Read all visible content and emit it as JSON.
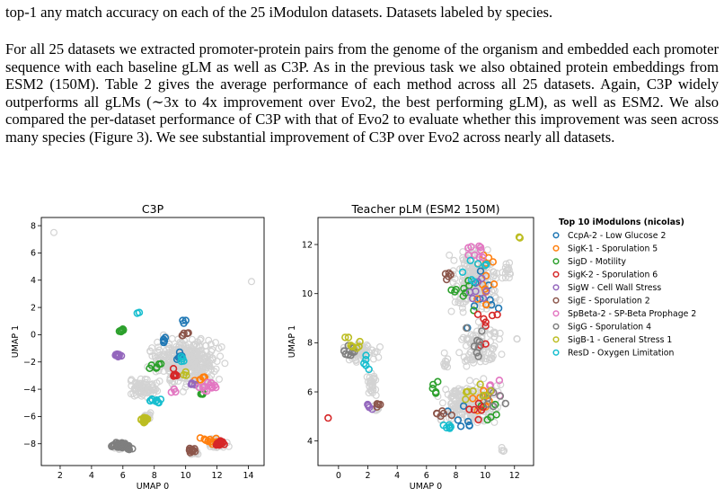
{
  "text": {
    "caption_tail": "top-1 any match accuracy on each of the 25 iModulon datasets. Datasets labeled by species.",
    "paragraph": "For all 25 datasets we extracted promoter-protein pairs from the genome of the organism and embedded each promoter sequence with each baseline gLM as well as C3P. As in the previous task we also obtained protein embeddings from ESM2 (150M). Table 2 gives the average performance of each method across all 25 datasets. Again, C3P widely outperforms all gLMs (∼3x to 4x improvement over Evo2, the best performing gLM), as well as ESM2. We also compared the per-dataset performance of C3P with that of Evo2 to evaluate whether this improvement was seen across many species (Figure 3). We see substantial improvement of C3P over Evo2 across nearly all datasets."
  },
  "legend": {
    "title": "Top 10 iModulons (nicolas)",
    "items": [
      {
        "label": "CcpA-2 - Low Glucose 2",
        "color": "#1f77b4"
      },
      {
        "label": "SigK-1 - Sporulation 5",
        "color": "#ff7f0e"
      },
      {
        "label": "SigD - Motility",
        "color": "#2ca02c"
      },
      {
        "label": "SigK-2 - Sporulation 6",
        "color": "#d62728"
      },
      {
        "label": "SigW - Cell Wall Stress",
        "color": "#9467bd"
      },
      {
        "label": "SigE - Sporulation 2",
        "color": "#8c564b"
      },
      {
        "label": "SpBeta-2 - SP-Beta Prophage 2",
        "color": "#e377c2"
      },
      {
        "label": "SigG - Sporulation 4",
        "color": "#7f7f7f"
      },
      {
        "label": "SigB-1 - General Stress 1",
        "color": "#bcbd22"
      },
      {
        "label": "ResD - Oxygen Limitation",
        "color": "#17becf"
      }
    ]
  },
  "background_color": "#d3d3d3",
  "chart_data": [
    {
      "type": "scatter",
      "title": "C3P",
      "xlabel": "UMAP 0",
      "ylabel": "UMAP 1",
      "xlim": [
        0.8,
        15.0
      ],
      "ylim": [
        -9.6,
        8.6
      ],
      "xticks": [
        2,
        4,
        6,
        8,
        10,
        12,
        14
      ],
      "yticks": [
        -8,
        -6,
        -4,
        -2,
        0,
        2,
        4,
        6,
        8
      ],
      "background": [
        {
          "cx": 10.0,
          "cy": -2.0,
          "rx": 2.8,
          "ry": 2.3,
          "n": 380
        },
        {
          "cx": 7.2,
          "cy": -4.0,
          "rx": 1.4,
          "ry": 1.0,
          "n": 70
        },
        {
          "cx": 12.0,
          "cy": -8.0,
          "rx": 0.9,
          "ry": 0.5,
          "n": 40
        },
        {
          "cx": 10.5,
          "cy": -8.6,
          "rx": 0.5,
          "ry": 0.3,
          "n": 12
        },
        {
          "cx": 5.8,
          "cy": -8.2,
          "rx": 0.6,
          "ry": 0.35,
          "n": 25
        },
        {
          "cx": 7.6,
          "cy": -6.0,
          "rx": 0.5,
          "ry": 0.4,
          "n": 14
        },
        {
          "x": 1.6,
          "y": 7.5
        },
        {
          "x": 14.2,
          "y": 3.9
        }
      ],
      "series": [
        {
          "color": "#1f77b4",
          "groups": [
            {
              "cx": 8.7,
              "cy": -0.5,
              "rx": 0.3,
              "ry": 0.4,
              "n": 5
            },
            {
              "cx": 9.6,
              "cy": -1.6,
              "rx": 0.4,
              "ry": 0.5,
              "n": 6
            },
            {
              "cx": 10.0,
              "cy": 0.9,
              "rx": 0.3,
              "ry": 0.3,
              "n": 3
            }
          ]
        },
        {
          "color": "#ff7f0e",
          "groups": [
            {
              "cx": 11.6,
              "cy": -7.8,
              "rx": 0.8,
              "ry": 0.4,
              "n": 12
            },
            {
              "cx": 10.9,
              "cy": -3.2,
              "rx": 0.6,
              "ry": 0.5,
              "n": 6
            }
          ]
        },
        {
          "color": "#2ca02c",
          "groups": [
            {
              "cx": 5.9,
              "cy": 0.3,
              "rx": 0.2,
              "ry": 0.15,
              "n": 8
            },
            {
              "cx": 8.1,
              "cy": -2.3,
              "rx": 0.5,
              "ry": 0.4,
              "n": 6
            },
            {
              "cx": 11.0,
              "cy": -4.3,
              "rx": 0.3,
              "ry": 0.3,
              "n": 4
            }
          ]
        },
        {
          "color": "#d62728",
          "groups": [
            {
              "cx": 12.2,
              "cy": -8.0,
              "rx": 0.5,
              "ry": 0.3,
              "n": 18
            },
            {
              "cx": 9.3,
              "cy": -3.0,
              "rx": 0.5,
              "ry": 0.6,
              "n": 6
            }
          ]
        },
        {
          "color": "#9467bd",
          "groups": [
            {
              "cx": 5.7,
              "cy": -1.5,
              "rx": 0.25,
              "ry": 0.15,
              "n": 14
            },
            {
              "cx": 10.4,
              "cy": -3.6,
              "rx": 0.4,
              "ry": 0.4,
              "n": 4
            }
          ]
        },
        {
          "color": "#8c564b",
          "groups": [
            {
              "cx": 10.5,
              "cy": -8.5,
              "rx": 0.4,
              "ry": 0.3,
              "n": 10
            },
            {
              "cx": 5.8,
              "cy": -8.1,
              "rx": 0.3,
              "ry": 0.3,
              "n": 4
            },
            {
              "cx": 9.9,
              "cy": 0.0,
              "rx": 0.4,
              "ry": 0.4,
              "n": 5
            }
          ]
        },
        {
          "color": "#e377c2",
          "groups": [
            {
              "cx": 11.4,
              "cy": -3.8,
              "rx": 0.8,
              "ry": 0.4,
              "n": 14
            },
            {
              "cx": 9.2,
              "cy": -4.2,
              "rx": 0.3,
              "ry": 0.3,
              "n": 3
            }
          ]
        },
        {
          "color": "#7f7f7f",
          "groups": [
            {
              "cx": 5.8,
              "cy": -8.1,
              "rx": 0.7,
              "ry": 0.3,
              "n": 40
            },
            {
              "cx": 6.4,
              "cy": -8.3,
              "rx": 0.3,
              "ry": 0.2,
              "n": 6
            }
          ]
        },
        {
          "color": "#bcbd22",
          "groups": [
            {
              "cx": 7.4,
              "cy": -6.2,
              "rx": 0.35,
              "ry": 0.3,
              "n": 20
            },
            {
              "cx": 10.0,
              "cy": -2.9,
              "rx": 0.3,
              "ry": 0.3,
              "n": 3
            }
          ]
        },
        {
          "color": "#17becf",
          "groups": [
            {
              "cx": 8.0,
              "cy": -4.8,
              "rx": 0.7,
              "ry": 0.3,
              "n": 9
            },
            {
              "cx": 9.7,
              "cy": -1.8,
              "rx": 0.4,
              "ry": 0.4,
              "n": 5
            },
            {
              "cx": 7.0,
              "cy": 1.6,
              "rx": 0.1,
              "ry": 0.1,
              "n": 2
            }
          ]
        }
      ]
    },
    {
      "type": "scatter",
      "title": "Teacher pLM (ESM2 150M)",
      "xlabel": "UMAP 0",
      "ylabel": "UMAP 1",
      "xlim": [
        -1.4,
        13.3
      ],
      "ylim": [
        3.0,
        13.1
      ],
      "xticks": [
        0,
        2,
        4,
        6,
        8,
        10,
        12
      ],
      "yticks": [
        4,
        6,
        8,
        10,
        12
      ],
      "background": [
        {
          "cx": 1.5,
          "cy": 7.6,
          "rx": 1.6,
          "ry": 0.6,
          "n": 60
        },
        {
          "cx": 2.3,
          "cy": 6.3,
          "rx": 0.6,
          "ry": 0.8,
          "n": 25
        },
        {
          "cx": 2.6,
          "cy": 5.3,
          "rx": 0.3,
          "ry": 0.2,
          "n": 6
        },
        {
          "cx": 9.4,
          "cy": 10.5,
          "rx": 2.2,
          "ry": 1.7,
          "n": 200
        },
        {
          "cx": 9.6,
          "cy": 8.0,
          "rx": 1.8,
          "ry": 1.2,
          "n": 100
        },
        {
          "cx": 8.9,
          "cy": 5.5,
          "rx": 2.6,
          "ry": 1.2,
          "n": 200
        },
        {
          "cx": 7.3,
          "cy": 7.2,
          "rx": 0.3,
          "ry": 0.6,
          "n": 10
        },
        {
          "cx": 11.6,
          "cy": 10.8,
          "rx": 0.4,
          "ry": 0.8,
          "n": 12
        },
        {
          "cx": 11.2,
          "cy": 3.6,
          "rx": 0.2,
          "ry": 0.2,
          "n": 4
        },
        {
          "cx": 12.2,
          "cy": 8.1,
          "rx": 0.1,
          "ry": 0.1,
          "n": 2
        }
      ],
      "series": [
        {
          "color": "#1f77b4",
          "groups": [
            {
              "cx": 9.8,
              "cy": 9.8,
              "rx": 1.6,
              "ry": 1.5,
              "n": 9
            },
            {
              "cx": 8.6,
              "cy": 5.0,
              "rx": 1.5,
              "ry": 0.8,
              "n": 7
            }
          ]
        },
        {
          "color": "#ff7f0e",
          "groups": [
            {
              "cx": 10.1,
              "cy": 10.5,
              "rx": 1.3,
              "ry": 1.6,
              "n": 14
            },
            {
              "cx": 10.0,
              "cy": 5.7,
              "rx": 1.3,
              "ry": 0.7,
              "n": 7
            }
          ]
        },
        {
          "color": "#2ca02c",
          "groups": [
            {
              "cx": 8.6,
              "cy": 10.3,
              "rx": 1.5,
              "ry": 1.4,
              "n": 9
            },
            {
              "cx": 6.6,
              "cy": 6.2,
              "rx": 0.4,
              "ry": 0.6,
              "n": 5
            },
            {
              "cx": 10.3,
              "cy": 5.2,
              "rx": 1.0,
              "ry": 0.6,
              "n": 5
            }
          ]
        },
        {
          "color": "#d62728",
          "groups": [
            {
              "cx": -0.7,
              "cy": 4.9,
              "rx": 0.05,
              "ry": 0.05,
              "n": 1
            },
            {
              "cx": 10.0,
              "cy": 8.8,
              "rx": 1.0,
              "ry": 1.2,
              "n": 8
            },
            {
              "cx": 9.6,
              "cy": 5.2,
              "rx": 1.2,
              "ry": 0.5,
              "n": 6
            }
          ]
        },
        {
          "color": "#9467bd",
          "groups": [
            {
              "cx": 2.1,
              "cy": 5.4,
              "rx": 0.5,
              "ry": 0.4,
              "n": 4
            },
            {
              "cx": 9.4,
              "cy": 10.4,
              "rx": 1.5,
              "ry": 1.4,
              "n": 7
            }
          ]
        },
        {
          "color": "#8c564b",
          "groups": [
            {
              "cx": 2.8,
              "cy": 5.4,
              "rx": 0.3,
              "ry": 0.3,
              "n": 4
            },
            {
              "cx": 7.5,
              "cy": 10.6,
              "rx": 0.6,
              "ry": 0.6,
              "n": 5
            },
            {
              "cx": 7.3,
              "cy": 5.0,
              "rx": 0.8,
              "ry": 0.4,
              "n": 6
            }
          ]
        },
        {
          "color": "#e377c2",
          "groups": [
            {
              "cx": 9.6,
              "cy": 11.6,
              "rx": 1.2,
              "ry": 0.8,
              "n": 9
            },
            {
              "cx": 10.6,
              "cy": 6.2,
              "rx": 0.8,
              "ry": 0.5,
              "n": 5
            }
          ]
        },
        {
          "color": "#7f7f7f",
          "groups": [
            {
              "cx": 0.6,
              "cy": 7.6,
              "rx": 0.8,
              "ry": 0.5,
              "n": 8
            },
            {
              "cx": 9.6,
              "cy": 7.9,
              "rx": 1.4,
              "ry": 1.3,
              "n": 8
            },
            {
              "cx": 10.5,
              "cy": 5.7,
              "rx": 1.3,
              "ry": 0.7,
              "n": 8
            }
          ]
        },
        {
          "color": "#bcbd22",
          "groups": [
            {
              "cx": 1.0,
              "cy": 7.9,
              "rx": 1.0,
              "ry": 0.5,
              "n": 8
            },
            {
              "cx": 12.4,
              "cy": 12.3,
              "rx": 0.1,
              "ry": 0.1,
              "n": 2
            },
            {
              "cx": 9.5,
              "cy": 6.0,
              "rx": 1.6,
              "ry": 0.7,
              "n": 8
            }
          ]
        },
        {
          "color": "#17becf",
          "groups": [
            {
              "cx": 2.0,
              "cy": 7.2,
              "rx": 0.6,
              "ry": 0.5,
              "n": 5
            },
            {
              "cx": 9.4,
              "cy": 11.2,
              "rx": 1.3,
              "ry": 1.0,
              "n": 7
            },
            {
              "cx": 7.4,
              "cy": 4.5,
              "rx": 0.8,
              "ry": 0.4,
              "n": 6
            }
          ]
        }
      ]
    }
  ]
}
